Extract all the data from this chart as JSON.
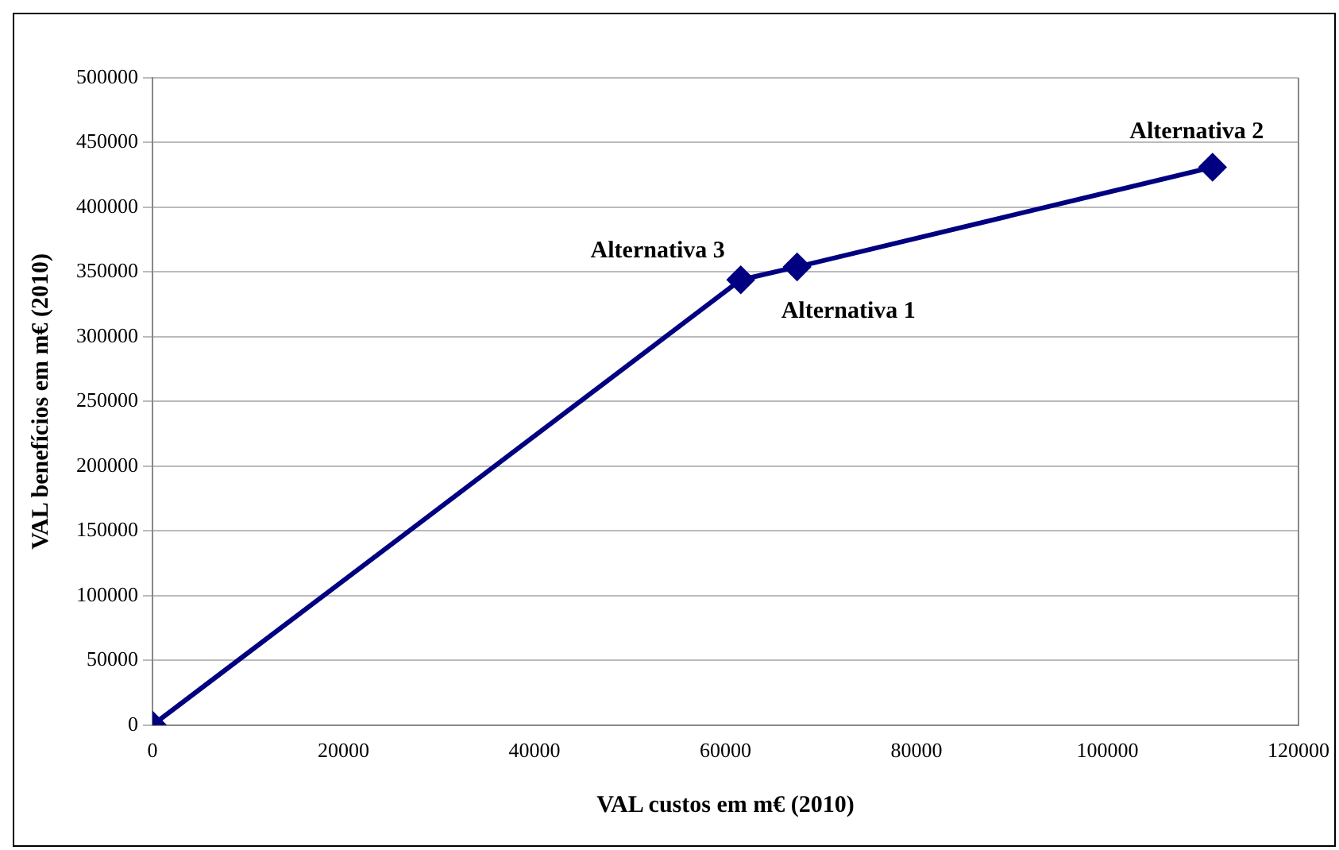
{
  "chart_data": {
    "type": "line",
    "xlabel": "VAL custos em m€ (2010)",
    "ylabel": "VAL benefícios em m€ (2010)",
    "series": [
      {
        "color": "#000080",
        "x": [
          0,
          61600,
          67500,
          111000
        ],
        "values": [
          0,
          344000,
          354000,
          431000
        ]
      }
    ],
    "xlim": [
      0,
      120000
    ],
    "xticks": [
      0,
      20000,
      40000,
      60000,
      80000,
      100000,
      120000
    ],
    "ylim": [
      0,
      500000
    ],
    "yticks": [
      0,
      50000,
      100000,
      150000,
      200000,
      250000,
      300000,
      350000,
      400000,
      450000,
      500000
    ],
    "grid": "y",
    "legend": false,
    "marker": "diamond",
    "line_style": "solid",
    "annotations": [
      {
        "text": "Alternativa 3",
        "x": 61600,
        "y": 344000
      },
      {
        "text": "Alternativa 1",
        "x": 67500,
        "y": 354000
      },
      {
        "text": "Alternativa 2",
        "x": 111000,
        "y": 431000
      }
    ]
  }
}
